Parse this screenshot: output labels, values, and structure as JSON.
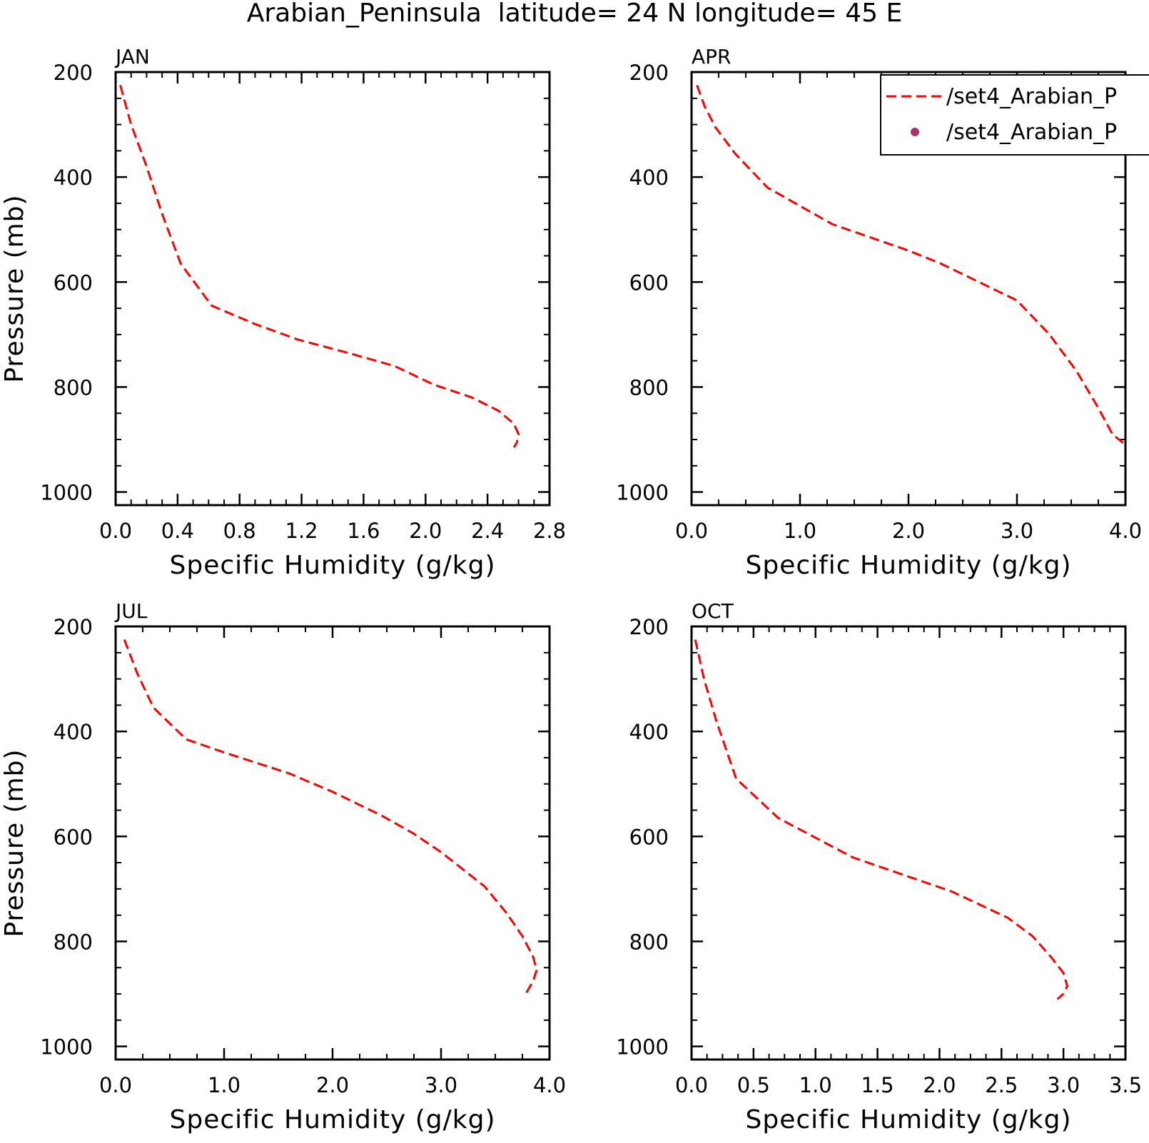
{
  "figure_title": "Arabian_Peninsula  latitude= 24 N longitude= 45 E",
  "legend": {
    "entries": [
      {
        "label": "/set4_Arabian_P",
        "style": "dashed-line",
        "color": "#ff0000"
      },
      {
        "label": "/set4_Arabian_P",
        "style": "dot",
        "color": "#b0306a"
      }
    ],
    "placement": "top-right of APR panel"
  },
  "chart_data": [
    {
      "type": "line",
      "panel_label": "JAN",
      "xlabel": "Specific Humidity (g/kg)",
      "ylabel": "Pressure (mb)",
      "xlim": [
        0,
        2.8
      ],
      "ylim": [
        1025,
        200
      ],
      "x_ticks": [
        "0.0",
        "0.4",
        "0.8",
        "1.2",
        "1.6",
        "2.0",
        "2.4",
        "2.8"
      ],
      "x_tick_values": [
        0,
        0.4,
        0.8,
        1.2,
        1.6,
        2.0,
        2.4,
        2.8
      ],
      "y_ticks": [
        "200",
        "400",
        "600",
        "800",
        "1000"
      ],
      "y_tick_values": [
        200,
        400,
        600,
        800,
        1000
      ],
      "series": [
        {
          "style": "dashed",
          "color": "#ff0000",
          "x": [
            0.03,
            0.1,
            0.2,
            0.3,
            0.42,
            0.62,
            0.9,
            1.18,
            1.5,
            1.8,
            2.05,
            2.3,
            2.47,
            2.57,
            2.6,
            2.59,
            2.57
          ],
          "y": [
            225,
            300,
            380,
            470,
            565,
            645,
            680,
            710,
            735,
            760,
            795,
            820,
            845,
            870,
            890,
            905,
            915
          ]
        }
      ]
    },
    {
      "type": "line",
      "panel_label": "APR",
      "xlabel": "Specific Humidity (g/kg)",
      "ylabel": "",
      "xlim": [
        0,
        4.0
      ],
      "ylim": [
        1025,
        200
      ],
      "x_ticks": [
        "0.0",
        "1.0",
        "2.0",
        "3.0",
        "4.0"
      ],
      "x_tick_values": [
        0,
        1.0,
        2.0,
        3.0,
        4.0
      ],
      "y_ticks": [
        "200",
        "400",
        "600",
        "800",
        "1000"
      ],
      "y_tick_values": [
        200,
        400,
        600,
        800,
        1000
      ],
      "series": [
        {
          "style": "dashed",
          "color": "#ff0000",
          "x": [
            0.05,
            0.12,
            0.22,
            0.4,
            0.7,
            1.3,
            2.0,
            2.3,
            2.7,
            3.0,
            3.3,
            3.55,
            3.75,
            3.88,
            4.0
          ],
          "y": [
            225,
            265,
            305,
            355,
            420,
            490,
            540,
            565,
            605,
            635,
            700,
            770,
            840,
            890,
            910
          ]
        }
      ]
    },
    {
      "type": "line",
      "panel_label": "JUL",
      "xlabel": "Specific Humidity (g/kg)",
      "ylabel": "Pressure (mb)",
      "xlim": [
        0,
        4.0
      ],
      "ylim": [
        1025,
        200
      ],
      "x_ticks": [
        "0.0",
        "1.0",
        "2.0",
        "3.0",
        "4.0"
      ],
      "x_tick_values": [
        0,
        1.0,
        2.0,
        3.0,
        4.0
      ],
      "y_ticks": [
        "200",
        "400",
        "600",
        "800",
        "1000"
      ],
      "y_tick_values": [
        200,
        400,
        600,
        800,
        1000
      ],
      "series": [
        {
          "style": "dashed",
          "color": "#ff0000",
          "x": [
            0.08,
            0.2,
            0.35,
            0.65,
            1.0,
            1.6,
            2.0,
            2.45,
            2.75,
            3.0,
            3.4,
            3.6,
            3.75,
            3.85,
            3.88,
            3.85,
            3.78
          ],
          "y": [
            225,
            290,
            355,
            415,
            440,
            480,
            515,
            560,
            595,
            630,
            695,
            745,
            790,
            830,
            855,
            875,
            900
          ]
        }
      ]
    },
    {
      "type": "line",
      "panel_label": "OCT",
      "xlabel": "Specific Humidity (g/kg)",
      "ylabel": "",
      "xlim": [
        0,
        3.5
      ],
      "ylim": [
        1025,
        200
      ],
      "x_ticks": [
        "0.0",
        "0.5",
        "1.0",
        "1.5",
        "2.0",
        "2.5",
        "3.0",
        "3.5"
      ],
      "x_tick_values": [
        0,
        0.5,
        1.0,
        1.5,
        2.0,
        2.5,
        3.0,
        3.5
      ],
      "y_ticks": [
        "200",
        "400",
        "600",
        "800",
        "1000"
      ],
      "y_tick_values": [
        200,
        400,
        600,
        800,
        1000
      ],
      "series": [
        {
          "style": "dashed",
          "color": "#ff0000",
          "x": [
            0.03,
            0.1,
            0.2,
            0.36,
            0.7,
            1.3,
            2.1,
            2.55,
            2.75,
            2.9,
            3.0,
            3.03,
            3.0,
            2.95
          ],
          "y": [
            225,
            300,
            380,
            490,
            565,
            640,
            705,
            755,
            790,
            830,
            860,
            885,
            900,
            910
          ]
        }
      ]
    }
  ]
}
